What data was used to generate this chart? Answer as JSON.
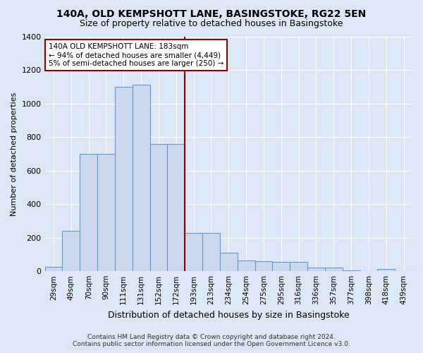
{
  "title": "140A, OLD KEMPSHOTT LANE, BASINGSTOKE, RG22 5EN",
  "subtitle": "Size of property relative to detached houses in Basingstoke",
  "xlabel": "Distribution of detached houses by size in Basingstoke",
  "ylabel": "Number of detached properties",
  "footer_line1": "Contains HM Land Registry data © Crown copyright and database right 2024.",
  "footer_line2": "Contains public sector information licensed under the Open Government Licence v3.0.",
  "bins": [
    "29sqm",
    "49sqm",
    "70sqm",
    "90sqm",
    "111sqm",
    "131sqm",
    "152sqm",
    "172sqm",
    "193sqm",
    "213sqm",
    "234sqm",
    "254sqm",
    "275sqm",
    "295sqm",
    "316sqm",
    "336sqm",
    "357sqm",
    "377sqm",
    "398sqm",
    "418sqm",
    "439sqm"
  ],
  "values": [
    25,
    240,
    700,
    700,
    1100,
    1110,
    760,
    760,
    230,
    230,
    110,
    65,
    60,
    55,
    55,
    20,
    20,
    5,
    0,
    15,
    0
  ],
  "bar_color_fill": "#ccd9ed",
  "bar_color_edge": "#6699cc",
  "bg_color": "#dce6f5",
  "grid_color": "#ffffff",
  "vline_x_index": 8,
  "vline_color": "#8b0000",
  "annotation_line1": "140A OLD KEMPSHOTT LANE: 183sqm",
  "annotation_line2": "← 94% of detached houses are smaller (4,449)",
  "annotation_line3": "5% of semi-detached houses are larger (250) →",
  "annotation_box_color": "#ffffff",
  "annotation_box_edge": "#8b0000",
  "ylim": [
    0,
    1400
  ],
  "yticks": [
    0,
    200,
    400,
    600,
    800,
    1000,
    1200,
    1400
  ],
  "title_fontsize": 10,
  "subtitle_fontsize": 9
}
